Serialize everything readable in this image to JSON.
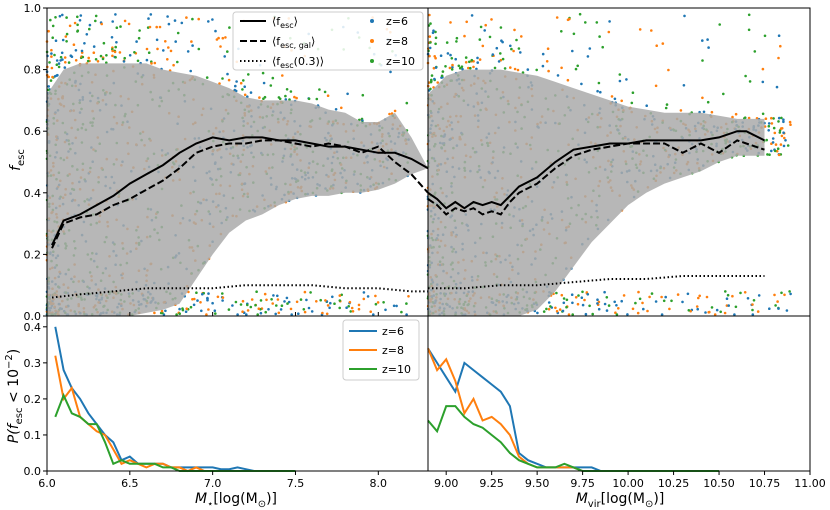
{
  "chart_data": [
    {
      "panel": "top-left",
      "type": "scatter",
      "xlim": [
        6.0,
        8.3
      ],
      "ylim": [
        0.0,
        1.0
      ],
      "xticks": [
        6.0,
        6.5,
        7.0,
        7.5,
        8.0
      ],
      "yticks": [
        0.0,
        0.2,
        0.4,
        0.6,
        0.8,
        1.0
      ],
      "ytick_labels": [
        "0.0",
        "0.2",
        "0.4",
        "0.6",
        "0.8",
        "1.0"
      ],
      "ylabel": "f_esc",
      "legend": {
        "position": "top-center",
        "line_entries": [
          "⟨f_esc⟩",
          "⟨f_esc,gal⟩",
          "⟨f_esc(0.3)⟩"
        ],
        "point_entries": [
          "z=6",
          "z=8",
          "z=10"
        ]
      },
      "series": [
        {
          "name": "⟨f_esc⟩",
          "style": "solid",
          "x": [
            6.03,
            6.1,
            6.2,
            6.3,
            6.4,
            6.5,
            6.6,
            6.7,
            6.8,
            6.9,
            7.0,
            7.1,
            7.2,
            7.3,
            7.4,
            7.5,
            7.6,
            7.7,
            7.8,
            7.9,
            8.0,
            8.1,
            8.2,
            8.3
          ],
          "y": [
            0.23,
            0.31,
            0.33,
            0.36,
            0.39,
            0.43,
            0.46,
            0.49,
            0.53,
            0.56,
            0.58,
            0.57,
            0.58,
            0.58,
            0.57,
            0.57,
            0.56,
            0.55,
            0.55,
            0.54,
            0.53,
            0.53,
            0.51,
            0.48
          ]
        },
        {
          "name": "⟨f_esc,gal⟩",
          "style": "dashed",
          "x": [
            6.03,
            6.1,
            6.2,
            6.3,
            6.4,
            6.5,
            6.6,
            6.7,
            6.8,
            6.9,
            7.0,
            7.1,
            7.2,
            7.3,
            7.4,
            7.5,
            7.6,
            7.7,
            7.8,
            7.9,
            8.0,
            8.1,
            8.2,
            8.3
          ],
          "y": [
            0.22,
            0.3,
            0.32,
            0.33,
            0.36,
            0.38,
            0.41,
            0.44,
            0.48,
            0.53,
            0.55,
            0.56,
            0.56,
            0.57,
            0.57,
            0.56,
            0.55,
            0.56,
            0.55,
            0.53,
            0.55,
            0.5,
            0.46,
            0.4
          ]
        },
        {
          "name": "⟨f_esc(0.3)⟩",
          "style": "dotted",
          "x": [
            6.03,
            6.2,
            6.4,
            6.6,
            6.8,
            7.0,
            7.2,
            7.4,
            7.6,
            7.8,
            8.0,
            8.2,
            8.3
          ],
          "y": [
            0.06,
            0.07,
            0.08,
            0.09,
            0.09,
            0.09,
            0.1,
            0.1,
            0.1,
            0.09,
            0.09,
            0.08,
            0.08
          ]
        }
      ],
      "band": {
        "x": [
          6.0,
          6.1,
          6.2,
          6.3,
          6.4,
          6.5,
          6.6,
          6.7,
          6.8,
          6.9,
          7.0,
          7.1,
          7.2,
          7.3,
          7.4,
          7.5,
          7.6,
          7.7,
          7.8,
          7.9,
          8.0,
          8.1,
          8.2,
          8.3
        ],
        "upper": [
          0.72,
          0.8,
          0.82,
          0.82,
          0.82,
          0.82,
          0.82,
          0.8,
          0.79,
          0.78,
          0.76,
          0.74,
          0.71,
          0.7,
          0.7,
          0.7,
          0.69,
          0.67,
          0.66,
          0.63,
          0.63,
          0.66,
          0.58,
          0.48
        ],
        "lower": [
          0.0,
          0.0,
          0.0,
          0.0,
          0.0,
          0.0,
          0.01,
          0.02,
          0.04,
          0.12,
          0.2,
          0.27,
          0.31,
          0.33,
          0.36,
          0.38,
          0.39,
          0.39,
          0.4,
          0.4,
          0.41,
          0.43,
          0.46,
          0.48
        ]
      }
    },
    {
      "panel": "top-right",
      "type": "scatter",
      "xlim": [
        8.9,
        11.0
      ],
      "ylim": [
        0.0,
        1.0
      ],
      "series": [
        {
          "name": "⟨f_esc⟩",
          "style": "solid",
          "x": [
            8.9,
            8.95,
            9.0,
            9.05,
            9.1,
            9.15,
            9.2,
            9.25,
            9.3,
            9.35,
            9.4,
            9.5,
            9.6,
            9.7,
            9.8,
            9.9,
            10.0,
            10.1,
            10.2,
            10.3,
            10.4,
            10.5,
            10.6,
            10.65,
            10.75
          ],
          "y": [
            0.4,
            0.38,
            0.35,
            0.37,
            0.35,
            0.37,
            0.36,
            0.37,
            0.36,
            0.39,
            0.42,
            0.45,
            0.5,
            0.54,
            0.55,
            0.56,
            0.56,
            0.57,
            0.57,
            0.57,
            0.57,
            0.58,
            0.6,
            0.6,
            0.57
          ]
        },
        {
          "name": "⟨f_esc,gal⟩",
          "style": "dashed",
          "x": [
            8.9,
            8.95,
            9.0,
            9.05,
            9.1,
            9.15,
            9.2,
            9.25,
            9.3,
            9.35,
            9.4,
            9.5,
            9.6,
            9.7,
            9.8,
            9.9,
            10.0,
            10.1,
            10.2,
            10.3,
            10.4,
            10.5,
            10.6,
            10.65,
            10.75
          ],
          "y": [
            0.38,
            0.36,
            0.33,
            0.35,
            0.34,
            0.35,
            0.33,
            0.34,
            0.33,
            0.37,
            0.4,
            0.43,
            0.48,
            0.52,
            0.54,
            0.55,
            0.56,
            0.56,
            0.56,
            0.53,
            0.56,
            0.53,
            0.57,
            0.56,
            0.54
          ]
        },
        {
          "name": "⟨f_esc(0.3)⟩",
          "style": "dotted",
          "x": [
            8.9,
            9.1,
            9.3,
            9.5,
            9.7,
            9.9,
            10.1,
            10.3,
            10.5,
            10.75
          ],
          "y": [
            0.09,
            0.09,
            0.1,
            0.1,
            0.11,
            0.12,
            0.12,
            0.13,
            0.13,
            0.13
          ]
        }
      ],
      "band": {
        "x": [
          8.9,
          9.0,
          9.1,
          9.2,
          9.3,
          9.4,
          9.5,
          9.6,
          9.7,
          9.8,
          9.9,
          10.0,
          10.1,
          10.2,
          10.3,
          10.4,
          10.5,
          10.6,
          10.75
        ],
        "upper": [
          0.72,
          0.78,
          0.8,
          0.8,
          0.8,
          0.79,
          0.78,
          0.76,
          0.74,
          0.72,
          0.7,
          0.68,
          0.67,
          0.66,
          0.66,
          0.66,
          0.65,
          0.64,
          0.64
        ],
        "lower": [
          0.0,
          0.0,
          0.0,
          0.0,
          0.0,
          0.0,
          0.02,
          0.08,
          0.16,
          0.24,
          0.3,
          0.36,
          0.4,
          0.43,
          0.45,
          0.47,
          0.5,
          0.52,
          0.52
        ]
      }
    },
    {
      "panel": "bottom-left",
      "type": "line",
      "xlim": [
        6.0,
        8.3
      ],
      "ylim": [
        0.0,
        0.43
      ],
      "xticks": [
        6.0,
        6.5,
        7.0,
        7.5,
        8.0
      ],
      "xtick_labels": [
        "6.0",
        "6.5",
        "7.0",
        "7.5",
        "8.0"
      ],
      "yticks": [
        0.0,
        0.1,
        0.2,
        0.3,
        0.4
      ],
      "ytick_labels": [
        "0.0",
        "0.1",
        "0.2",
        "0.3",
        "0.4"
      ],
      "xlabel": "M_⋆[log(M_⊙)]",
      "ylabel": "P(f_esc < 10^-2)",
      "legend": {
        "position": "top-right",
        "entries": [
          "z=6",
          "z=8",
          "z=10"
        ]
      },
      "x": [
        6.05,
        6.1,
        6.15,
        6.2,
        6.25,
        6.3,
        6.35,
        6.4,
        6.45,
        6.5,
        6.55,
        6.6,
        6.65,
        6.7,
        6.75,
        6.8,
        6.85,
        6.9,
        6.95,
        7.0,
        7.05,
        7.1,
        7.15,
        7.2,
        7.25,
        7.3,
        7.35,
        7.4,
        7.45,
        7.5
      ],
      "series": [
        {
          "name": "z=6",
          "values": [
            0.4,
            0.28,
            0.23,
            0.2,
            0.16,
            0.13,
            0.1,
            0.08,
            0.03,
            0.04,
            0.02,
            0.02,
            0.02,
            0.02,
            0.01,
            0.01,
            0.01,
            0.01,
            0.01,
            0.01,
            0.005,
            0.005,
            0.01,
            0.005,
            0.0,
            0.0,
            0.0,
            0.0,
            0.0,
            0.0
          ]
        },
        {
          "name": "z=8",
          "values": [
            0.32,
            0.2,
            0.23,
            0.15,
            0.13,
            0.11,
            0.1,
            0.06,
            0.02,
            0.03,
            0.02,
            0.01,
            0.02,
            0.02,
            0.01,
            0.01,
            0.0,
            0.01,
            0.0,
            0.0,
            0.0,
            0.0,
            0.0,
            0.0,
            0.0,
            0.0,
            0.0,
            0.0,
            0.0,
            0.0
          ]
        },
        {
          "name": "z=10",
          "values": [
            0.15,
            0.21,
            0.16,
            0.15,
            0.13,
            0.13,
            0.08,
            0.02,
            0.03,
            0.02,
            0.02,
            0.02,
            0.02,
            0.01,
            0.01,
            0.0,
            0.0,
            0.0,
            0.0,
            0.0,
            0.0,
            0.0,
            0.0,
            0.0,
            0.0,
            0.0,
            0.0,
            0.0,
            0.0,
            0.0
          ]
        }
      ]
    },
    {
      "panel": "bottom-right",
      "type": "line",
      "xlim": [
        8.9,
        11.0
      ],
      "ylim": [
        0.0,
        0.43
      ],
      "xticks": [
        9.0,
        9.25,
        9.5,
        9.75,
        10.0,
        10.25,
        10.5,
        10.75,
        11.0
      ],
      "xtick_labels": [
        "9.00",
        "9.25",
        "9.50",
        "9.75",
        "10.00",
        "10.25",
        "10.50",
        "10.75",
        "11.00"
      ],
      "xlabel": "M_vir[log(M_⊙)]",
      "x": [
        8.9,
        8.95,
        9.0,
        9.05,
        9.1,
        9.15,
        9.2,
        9.25,
        9.3,
        9.35,
        9.4,
        9.45,
        9.5,
        9.55,
        9.6,
        9.65,
        9.7,
        9.75,
        9.8,
        9.85,
        9.9,
        9.95,
        10.0,
        10.05,
        10.1,
        10.15,
        10.2,
        10.3,
        10.4,
        10.5
      ],
      "series": [
        {
          "name": "z=6",
          "values": [
            0.34,
            0.3,
            0.26,
            0.22,
            0.3,
            0.28,
            0.26,
            0.24,
            0.22,
            0.18,
            0.05,
            0.03,
            0.02,
            0.01,
            0.01,
            0.01,
            0.01,
            0.01,
            0.01,
            0.0,
            0.0,
            0.0,
            0.0,
            0.0,
            0.0,
            0.0,
            0.0,
            0.0,
            0.0,
            0.0
          ]
        },
        {
          "name": "z=8",
          "values": [
            0.34,
            0.28,
            0.31,
            0.25,
            0.16,
            0.2,
            0.14,
            0.15,
            0.13,
            0.1,
            0.04,
            0.02,
            0.01,
            0.01,
            0.01,
            0.01,
            0.01,
            0.0,
            0.0,
            0.0,
            0.0,
            0.0,
            0.0,
            0.0,
            0.0,
            0.0,
            0.0,
            0.0,
            0.0,
            0.0
          ]
        },
        {
          "name": "z=10",
          "values": [
            0.14,
            0.11,
            0.18,
            0.18,
            0.15,
            0.13,
            0.12,
            0.1,
            0.08,
            0.05,
            0.03,
            0.02,
            0.01,
            0.01,
            0.01,
            0.02,
            0.01,
            0.0,
            0.0,
            0.0,
            0.0,
            0.0,
            0.0,
            0.0,
            0.0,
            0.0,
            0.0,
            0.0,
            0.0,
            0.0
          ]
        }
      ]
    }
  ],
  "colors": {
    "z6": "#1f77b4",
    "z8": "#ff7f0e",
    "z10": "#2ca02c",
    "band": "#aaaaaa"
  },
  "labels": {
    "top_ylabel_main": "f",
    "top_ylabel_sub": "esc",
    "bottom_ylabel_main_a": "P(f",
    "bottom_ylabel_sub": "esc",
    "bottom_ylabel_main_b": " < 10",
    "bottom_ylabel_sup": "−2",
    "bottom_ylabel_close": ")",
    "xlabel_left_main": "M",
    "xlabel_left_sub": "⋆",
    "xlabel_left_rest": "[log(M",
    "xlabel_left_sub2": "⊙",
    "xlabel_left_end": ")]",
    "xlabel_right_main": "M",
    "xlabel_right_sub": "vir",
    "xlabel_right_rest": "[log(M",
    "xlabel_right_sub2": "⊙",
    "xlabel_right_end": ")]",
    "legend_mean_open": "⟨f",
    "legend_mean_sub": "esc",
    "legend_mean_close": "⟩",
    "legend_gal_open": "⟨f",
    "legend_gal_sub": "esc, gal",
    "legend_gal_close": "⟩",
    "legend_03_open": "⟨f",
    "legend_03_sub": "esc",
    "legend_03_close": "(0.3)⟩",
    "z6": "z=6",
    "z8": "z=8",
    "z10": "z=10"
  }
}
